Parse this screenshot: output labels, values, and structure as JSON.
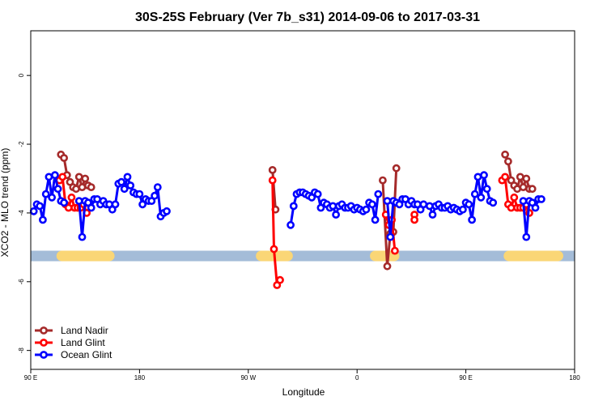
{
  "chart_data": {
    "type": "line",
    "title": "30S-25S February (Ver 7b_s31)   2014-09-06 to 2017-03-31",
    "xlabel": "Longitude",
    "ylabel": "XCO2 - MLO trend (ppm)",
    "xlim": [
      90,
      450
    ],
    "ylim": [
      -8.55,
      1.3
    ],
    "x_ticks": [
      {
        "value": 90,
        "label": "90 E"
      },
      {
        "value": 162,
        "label": "180"
      },
      {
        "value": 234,
        "label": "90 W"
      },
      {
        "value": 306,
        "label": "0"
      },
      {
        "value": 378,
        "label": "90 E"
      },
      {
        "value": 450,
        "label": "180"
      }
    ],
    "y_ticks": [
      {
        "value": 0,
        "label": "0"
      },
      {
        "value": -2,
        "label": "-2"
      },
      {
        "value": -4,
        "label": "-4"
      },
      {
        "value": -6,
        "label": "-6"
      },
      {
        "value": -8,
        "label": "-8"
      }
    ],
    "grid": false,
    "legend_position": "bottom-left",
    "land_ocean_bar": {
      "y": -5.25,
      "ocean_color": "#a4bcd8",
      "land_color": "#fad676",
      "land_segments": [
        [
          110.5,
          142
        ],
        [
          242.5,
          260
        ],
        [
          318,
          330.5
        ],
        [
          327,
          330
        ],
        [
          406.5,
          439
        ]
      ]
    },
    "series": [
      {
        "name": "Land Nadir",
        "color": "#a52a2a",
        "segments": [
          [
            [
              110,
              -2.3
            ],
            [
              112,
              -2.4
            ],
            [
              114,
              -2.9
            ],
            [
              116,
              -3.1
            ],
            [
              118,
              -3.25
            ],
            [
              120,
              -3.3
            ],
            [
              122,
              -2.95
            ],
            [
              124,
              -3.25
            ],
            [
              126,
              -3.0
            ],
            [
              128,
              -3.2
            ],
            [
              130,
              -3.25
            ]
          ],
          [
            [
              250,
              -2.75
            ],
            [
              252,
              -3.9
            ]
          ],
          [
            [
              323,
              -3.05
            ],
            [
              326,
              -5.55
            ],
            [
              328,
              -4.6
            ],
            [
              330,
              -4.55
            ],
            [
              332,
              -2.7
            ]
          ],
          [
            [
              404,
              -2.3
            ],
            [
              406,
              -2.5
            ],
            [
              408,
              -3.05
            ],
            [
              410,
              -3.2
            ],
            [
              412,
              -3.3
            ],
            [
              414,
              -2.95
            ],
            [
              416,
              -3.25
            ],
            [
              418,
              -3.0
            ],
            [
              420,
              -3.3
            ],
            [
              422,
              -3.3
            ]
          ]
        ]
      },
      {
        "name": "Land Glint",
        "color": "#ff0000",
        "segments": [
          [
            [
              109,
              -3.05
            ],
            [
              111,
              -2.95
            ],
            [
              113,
              -3.75
            ],
            [
              115,
              -3.85
            ],
            [
              117,
              -3.55
            ],
            [
              119,
              -3.85
            ],
            [
              121,
              -3.85
            ],
            [
              123,
              -3.85
            ],
            [
              125,
              -3.75
            ],
            [
              127,
              -4.0
            ]
          ],
          [
            [
              250,
              -3.05
            ],
            [
              251,
              -5.05
            ],
            [
              253,
              -6.1
            ],
            [
              255,
              -5.95
            ]
          ],
          [
            [
              325,
              -4.05
            ],
            [
              327,
              -4.35
            ],
            [
              329,
              -4.2
            ],
            [
              331,
              -5.1
            ]
          ],
          [
            [
              344,
              -4.05
            ],
            [
              344,
              -4.2
            ]
          ],
          [
            [
              402,
              -3.05
            ],
            [
              404,
              -2.95
            ],
            [
              406,
              -3.75
            ],
            [
              408,
              -3.85
            ],
            [
              410,
              -3.55
            ],
            [
              412,
              -3.85
            ],
            [
              414,
              -3.85
            ],
            [
              416,
              -3.85
            ],
            [
              418,
              -3.75
            ],
            [
              420,
              -4.0
            ]
          ]
        ]
      },
      {
        "name": "Ocean Glint",
        "color": "#0000ff",
        "segments": [
          [
            [
              92,
              -3.95
            ],
            [
              94,
              -3.75
            ],
            [
              96,
              -3.8
            ],
            [
              98,
              -4.2
            ],
            [
              100,
              -3.45
            ],
            [
              102,
              -2.95
            ],
            [
              104,
              -3.55
            ],
            [
              106,
              -2.9
            ],
            [
              108,
              -3.3
            ],
            [
              110,
              -3.65
            ],
            [
              112,
              -3.7
            ]
          ],
          [
            [
              122,
              -3.65
            ],
            [
              124,
              -4.7
            ],
            [
              126,
              -3.65
            ],
            [
              128,
              -3.7
            ],
            [
              130,
              -3.85
            ],
            [
              132,
              -3.6
            ],
            [
              134,
              -3.6
            ],
            [
              136,
              -3.75
            ],
            [
              138,
              -3.65
            ],
            [
              140,
              -3.75
            ],
            [
              142,
              -3.75
            ],
            [
              144,
              -3.9
            ],
            [
              146,
              -3.75
            ],
            [
              148,
              -3.15
            ],
            [
              150,
              -3.1
            ],
            [
              152,
              -3.3
            ],
            [
              154,
              -2.95
            ],
            [
              156,
              -3.2
            ],
            [
              158,
              -3.4
            ],
            [
              160,
              -3.45
            ],
            [
              162,
              -3.45
            ],
            [
              164,
              -3.75
            ],
            [
              166,
              -3.6
            ],
            [
              168,
              -3.65
            ],
            [
              170,
              -3.65
            ],
            [
              172,
              -3.5
            ],
            [
              174,
              -3.25
            ],
            [
              176,
              -4.1
            ],
            [
              178,
              -4.0
            ],
            [
              180,
              -3.95
            ]
          ],
          [
            [
              262,
              -4.35
            ],
            [
              264,
              -3.8
            ],
            [
              266,
              -3.45
            ],
            [
              268,
              -3.4
            ],
            [
              270,
              -3.4
            ],
            [
              272,
              -3.45
            ],
            [
              274,
              -3.5
            ],
            [
              276,
              -3.55
            ],
            [
              278,
              -3.4
            ],
            [
              280,
              -3.45
            ],
            [
              282,
              -3.85
            ],
            [
              284,
              -3.7
            ],
            [
              286,
              -3.75
            ],
            [
              288,
              -3.85
            ],
            [
              290,
              -3.8
            ],
            [
              292,
              -4.05
            ],
            [
              294,
              -3.8
            ],
            [
              296,
              -3.75
            ],
            [
              298,
              -3.85
            ],
            [
              300,
              -3.85
            ],
            [
              302,
              -3.8
            ],
            [
              304,
              -3.9
            ],
            [
              306,
              -3.85
            ],
            [
              308,
              -3.9
            ],
            [
              310,
              -3.95
            ],
            [
              312,
              -3.9
            ],
            [
              314,
              -3.7
            ],
            [
              316,
              -3.75
            ],
            [
              318,
              -4.2
            ],
            [
              320,
              -3.45
            ]
          ],
          [
            [
              326,
              -3.65
            ],
            [
              328,
              -4.7
            ],
            [
              330,
              -3.65
            ],
            [
              332,
              -3.7
            ],
            [
              334,
              -3.75
            ],
            [
              336,
              -3.6
            ],
            [
              338,
              -3.6
            ],
            [
              340,
              -3.75
            ],
            [
              342,
              -3.65
            ],
            [
              344,
              -3.75
            ],
            [
              346,
              -3.75
            ],
            [
              348,
              -3.9
            ],
            [
              350,
              -3.75
            ]
          ],
          [
            [
              354,
              -3.8
            ],
            [
              356,
              -4.05
            ],
            [
              358,
              -3.8
            ],
            [
              360,
              -3.75
            ],
            [
              362,
              -3.85
            ],
            [
              364,
              -3.85
            ],
            [
              366,
              -3.8
            ],
            [
              368,
              -3.9
            ],
            [
              370,
              -3.85
            ],
            [
              372,
              -3.9
            ],
            [
              374,
              -3.95
            ],
            [
              376,
              -3.9
            ],
            [
              378,
              -3.7
            ],
            [
              380,
              -3.75
            ],
            [
              382,
              -4.2
            ],
            [
              384,
              -3.45
            ],
            [
              386,
              -2.95
            ],
            [
              388,
              -3.55
            ],
            [
              390,
              -2.9
            ],
            [
              392,
              -3.3
            ],
            [
              394,
              -3.65
            ],
            [
              396,
              -3.7
            ]
          ],
          [
            [
              416,
              -3.65
            ],
            [
              418,
              -4.7
            ],
            [
              420,
              -3.65
            ],
            [
              422,
              -3.7
            ],
            [
              424,
              -3.85
            ],
            [
              426,
              -3.6
            ],
            [
              428,
              -3.6
            ]
          ]
        ]
      }
    ]
  }
}
